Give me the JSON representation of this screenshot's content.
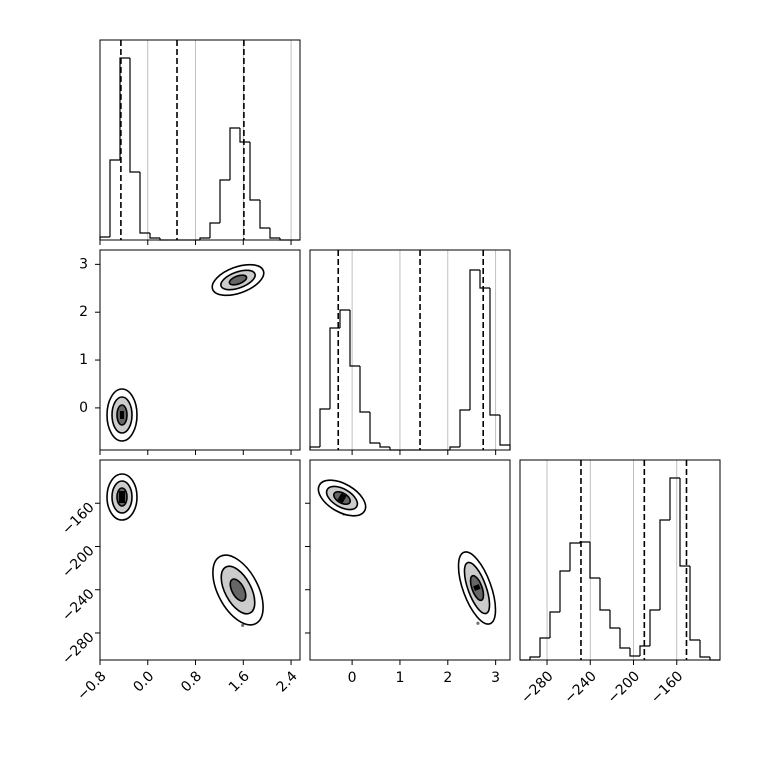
{
  "chart_data": [
    {
      "type": "histogram",
      "xlim": [
        -0.8,
        2.55
      ],
      "ylim": [
        0,
        200
      ],
      "bins": [
        -0.8,
        -0.6325,
        -0.465,
        -0.2975,
        -0.13,
        0.0375,
        0.205,
        0.3725,
        0.54,
        0.7075,
        0.875,
        1.0425,
        1.21,
        1.3775,
        1.545,
        1.7125,
        1.88,
        2.0475,
        2.215,
        2.3825,
        2.55
      ],
      "counts": [
        3,
        80,
        182,
        68,
        7,
        2,
        0,
        0,
        0,
        0,
        2,
        17,
        60,
        112,
        98,
        40,
        12,
        2,
        0,
        0
      ],
      "quantiles": [
        -0.45,
        0.49,
        1.61
      ],
      "grid": true
    },
    {
      "type": "scatter",
      "xlim": [
        -0.8,
        2.55
      ],
      "ylim": [
        -0.88,
        3.3
      ],
      "yticks": [
        0,
        1,
        2,
        3
      ],
      "x": [
        -0.43,
        -0.31,
        -0.55,
        -0.39,
        -0.45,
        -0.35,
        -0.51,
        -0.36,
        -0.5,
        -0.24,
        -0.61,
        -0.41,
        1.55,
        1.75,
        1.35,
        1.61,
        1.51,
        1.69,
        1.41,
        1.67,
        1.43,
        1.87,
        1.25,
        1.59
      ],
      "y": [
        -0.15,
        -0.1,
        -0.23,
        0.1,
        -0.4,
        0.03,
        -0.3,
        -0.33,
        0.05,
        -0.05,
        -0.2,
        -0.58,
        2.68,
        2.76,
        2.58,
        2.82,
        2.55,
        2.81,
        2.57,
        2.63,
        2.74,
        2.82,
        2.57,
        2.49
      ]
    },
    {
      "type": "histogram",
      "xlim": [
        -0.88,
        3.3
      ],
      "ylim": [
        0,
        200
      ],
      "bins": [
        -0.88,
        -0.671,
        -0.462,
        -0.253,
        -0.044,
        0.165,
        0.374,
        0.583,
        0.792,
        1.001,
        1.21,
        1.419,
        1.628,
        1.837,
        2.046,
        2.255,
        2.464,
        2.673,
        2.882,
        3.091,
        3.3
      ],
      "counts": [
        3,
        41,
        122,
        140,
        84,
        38,
        7,
        3,
        0,
        0,
        0,
        0,
        0,
        0,
        3,
        40,
        180,
        162,
        35,
        5
      ],
      "quantiles": [
        -0.29,
        1.42,
        2.74
      ],
      "grid": true
    },
    {
      "type": "scatter",
      "xlim": [
        -0.8,
        2.55
      ],
      "ylim": [
        -305,
        -120
      ],
      "xticks": [
        {
          "value": -0.8,
          "label": "−0.8"
        },
        {
          "value": 0,
          "label": "0.0"
        },
        0.8,
        1.6,
        2.4
      ],
      "yticks": [
        {
          "value": -280,
          "label": "−280"
        },
        {
          "value": -240,
          "label": "−240"
        },
        {
          "value": -200,
          "label": "−200"
        },
        {
          "value": -160,
          "label": "−160"
        }
      ],
      "x": [
        -0.43,
        -0.31,
        -0.55,
        -0.39,
        -0.45,
        -0.35,
        -0.51,
        -0.36,
        -0.5,
        -0.24,
        -0.61,
        -0.41,
        1.55,
        1.75,
        1.35,
        1.61,
        1.51,
        1.69,
        1.41,
        1.67,
        1.43,
        1.87,
        1.25,
        1.59
      ],
      "y": [
        -154,
        -152,
        -157,
        -144,
        -164,
        -147,
        -160,
        -161,
        -146,
        -150,
        -156,
        -171,
        -240,
        -248,
        -233,
        -226,
        -256,
        -236,
        -242,
        -260,
        -218,
        -252,
        -226,
        -273
      ]
    },
    {
      "type": "scatter",
      "xlim": [
        -0.88,
        3.3
      ],
      "ylim": [
        -305,
        -120
      ],
      "xticks": [
        0,
        1,
        2,
        3
      ],
      "x": [
        -0.21,
        -0.01,
        -0.41,
        -0.15,
        -0.25,
        -0.07,
        -0.35,
        -0.09,
        -0.33,
        0.11,
        -0.51,
        -0.17,
        2.61,
        2.71,
        2.51,
        2.64,
        2.59,
        2.68,
        2.54,
        2.67,
        2.55,
        2.77,
        2.46,
        2.63
      ],
      "y": [
        -155,
        -158,
        -152,
        -149,
        -162,
        -153,
        -156,
        -164,
        -146,
        -160,
        -149,
        -170,
        -238,
        -244,
        -233,
        -223,
        -254,
        -232,
        -242,
        -257,
        -218,
        -247,
        -227,
        -271
      ]
    },
    {
      "type": "histogram",
      "xlim": [
        -305,
        -120
      ],
      "ylim": [
        0,
        200
      ],
      "xticks": [
        {
          "value": -280,
          "label": "−280"
        },
        {
          "value": -240,
          "label": "−240"
        },
        {
          "value": -200,
          "label": "−200"
        },
        {
          "value": -160,
          "label": "−160"
        }
      ],
      "bins": [
        -305,
        -295.75,
        -286.5,
        -277.25,
        -268,
        -258.75,
        -249.5,
        -240.25,
        -231,
        -221.75,
        -212.5,
        -203.25,
        -194,
        -184.75,
        -175.5,
        -166.25,
        -157,
        -147.75,
        -138.5,
        -129.25,
        -120
      ],
      "counts": [
        0,
        3,
        22,
        48,
        89,
        117,
        118,
        82,
        50,
        32,
        12,
        4,
        14,
        50,
        140,
        182,
        94,
        20,
        3,
        0
      ],
      "quantiles": [
        -248.6,
        -190,
        -151
      ],
      "grid": true
    }
  ]
}
